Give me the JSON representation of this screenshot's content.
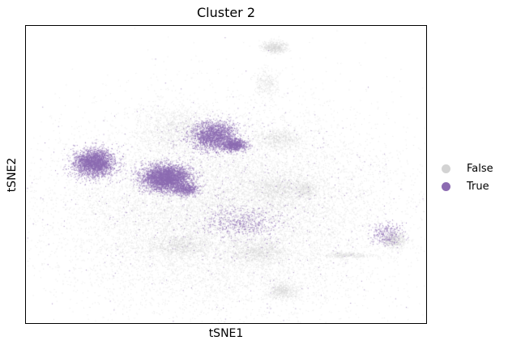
{
  "chart_data": {
    "type": "scatter",
    "title": "Cluster 2",
    "xlabel": "tSNE1",
    "ylabel": "tSNE2",
    "xticks": [],
    "yticks": [],
    "grid": false,
    "legend_position": "right",
    "series": [
      {
        "name": "False",
        "color": "#d3d3d3",
        "description_regions": [
          {
            "cx": 0.5,
            "cy": 0.62,
            "rx": 0.42,
            "ry": 0.33,
            "weight": 55
          },
          {
            "cx": 0.38,
            "cy": 0.35,
            "rx": 0.1,
            "ry": 0.08,
            "weight": 4
          },
          {
            "cx": 0.63,
            "cy": 0.55,
            "rx": 0.08,
            "ry": 0.05,
            "weight": 3
          },
          {
            "cx": 0.38,
            "cy": 0.74,
            "rx": 0.08,
            "ry": 0.04,
            "weight": 3
          },
          {
            "cx": 0.58,
            "cy": 0.76,
            "rx": 0.07,
            "ry": 0.04,
            "weight": 3
          },
          {
            "cx": 0.62,
            "cy": 0.07,
            "rx": 0.03,
            "ry": 0.02,
            "weight": 2
          },
          {
            "cx": 0.6,
            "cy": 0.19,
            "rx": 0.03,
            "ry": 0.05,
            "weight": 1
          },
          {
            "cx": 0.64,
            "cy": 0.89,
            "rx": 0.04,
            "ry": 0.03,
            "weight": 2
          },
          {
            "cx": 0.92,
            "cy": 0.72,
            "rx": 0.03,
            "ry": 0.03,
            "weight": 2
          },
          {
            "cx": 0.8,
            "cy": 0.77,
            "rx": 0.06,
            "ry": 0.01,
            "weight": 1
          },
          {
            "cx": 0.63,
            "cy": 0.38,
            "rx": 0.06,
            "ry": 0.03,
            "weight": 2
          },
          {
            "cx": 0.7,
            "cy": 0.55,
            "rx": 0.03,
            "ry": 0.03,
            "weight": 1
          }
        ]
      },
      {
        "name": "True",
        "color": "#8c6bb1",
        "description_regions": [
          {
            "cx": 0.17,
            "cy": 0.46,
            "rx": 0.05,
            "ry": 0.045,
            "weight": 10
          },
          {
            "cx": 0.35,
            "cy": 0.51,
            "rx": 0.06,
            "ry": 0.045,
            "weight": 14
          },
          {
            "cx": 0.47,
            "cy": 0.37,
            "rx": 0.06,
            "ry": 0.05,
            "weight": 8
          },
          {
            "cx": 0.52,
            "cy": 0.4,
            "rx": 0.03,
            "ry": 0.02,
            "weight": 3
          },
          {
            "cx": 0.54,
            "cy": 0.66,
            "rx": 0.1,
            "ry": 0.05,
            "weight": 2
          },
          {
            "cx": 0.4,
            "cy": 0.55,
            "rx": 0.03,
            "ry": 0.02,
            "weight": 2
          },
          {
            "cx": 0.9,
            "cy": 0.7,
            "rx": 0.04,
            "ry": 0.04,
            "weight": 1
          },
          {
            "cx": 0.5,
            "cy": 0.6,
            "rx": 0.45,
            "ry": 0.35,
            "weight": 2
          }
        ]
      }
    ]
  },
  "legend": {
    "items": [
      {
        "label": "False",
        "color": "#d3d3d3"
      },
      {
        "label": "True",
        "color": "#8c6bb1"
      }
    ]
  }
}
